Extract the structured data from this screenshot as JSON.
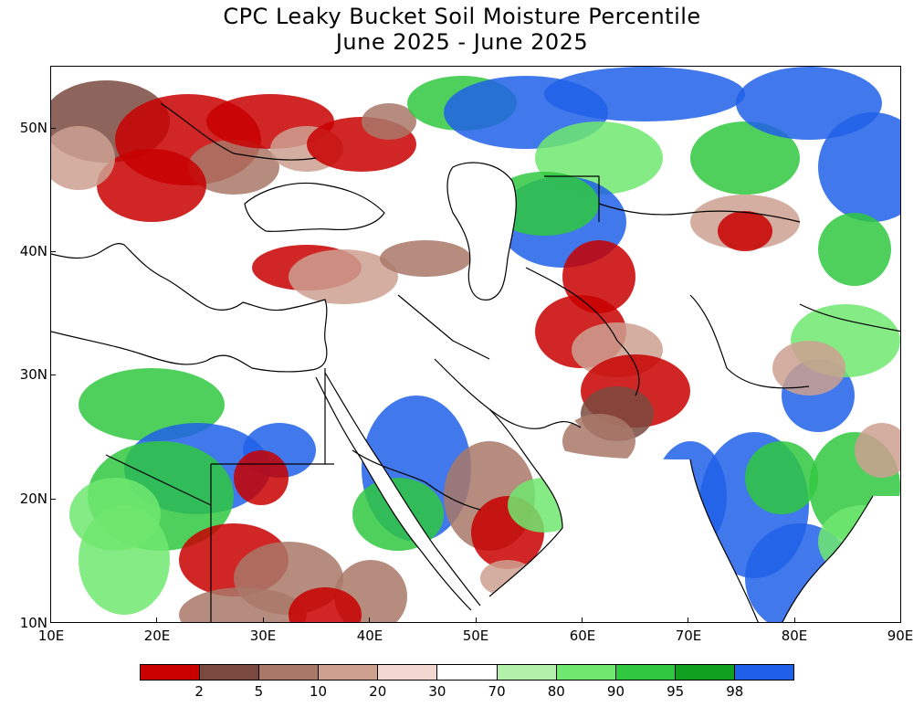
{
  "title": {
    "line1": "CPC Leaky Bucket Soil Moisture Percentile",
    "line2": "June 2025 - June 2025"
  },
  "y_axis_labels": [
    "50N",
    "40N",
    "30N",
    "20N",
    "10N"
  ],
  "x_axis_labels": [
    "10E",
    "20E",
    "30E",
    "40E",
    "50E",
    "60E",
    "70E",
    "80E",
    "90E"
  ],
  "extent": {
    "lon_min": 10,
    "lon_max": 90,
    "lat_min": 10,
    "lat_max": 55
  },
  "legend": {
    "labels": [
      "2",
      "5",
      "10",
      "20",
      "30",
      "70",
      "80",
      "90",
      "95",
      "98"
    ],
    "colors": [
      "#c80000",
      "#7a4a40",
      "#a97868",
      "#cda090",
      "#f0d8d0",
      "#ffffff",
      "#b0f0a8",
      "#70e870",
      "#30c840",
      "#10a020",
      "#2060e8"
    ]
  },
  "colors": {
    "water": "#ffffff",
    "border_lines": "#000000"
  }
}
